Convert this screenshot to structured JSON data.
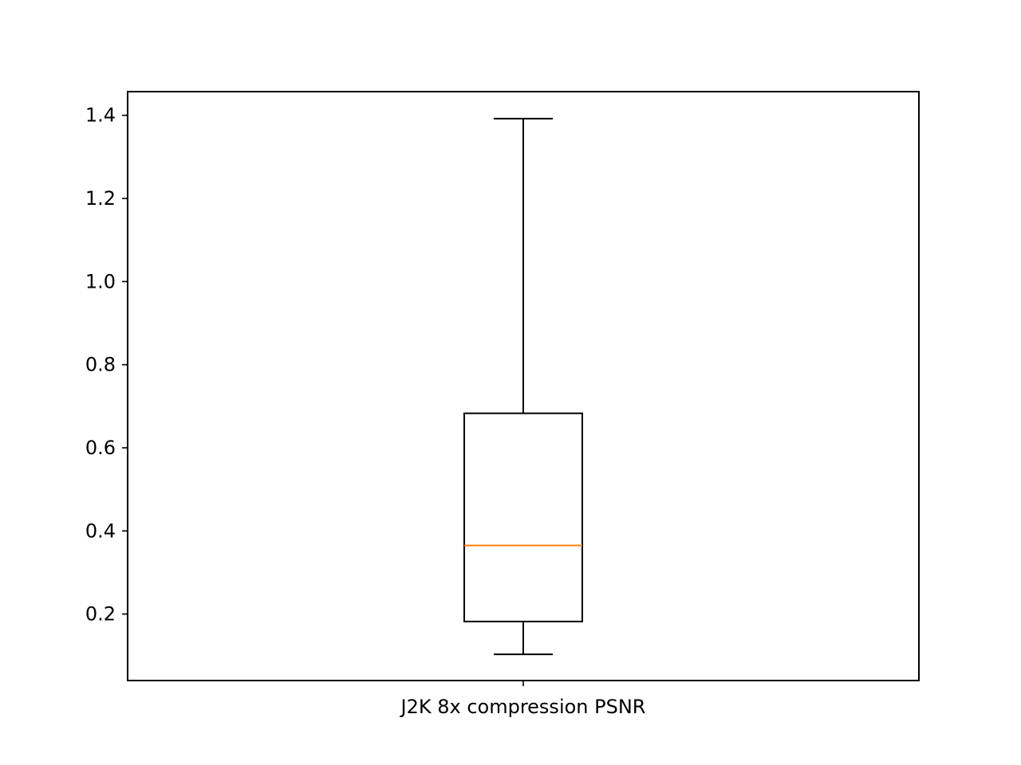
{
  "chart_data": {
    "type": "box",
    "title": "",
    "xlabel": "",
    "ylabel": "",
    "categories": [
      "J2K 8x compression PSNR"
    ],
    "boxes": [
      {
        "category": "J2K 8x compression PSNR",
        "whisker_low": 0.103,
        "q1": 0.182,
        "median": 0.365,
        "q3": 0.683,
        "whisker_high": 1.392
      }
    ],
    "ylim": [
      0.04,
      1.457
    ],
    "yticks": [
      0.2,
      0.4,
      0.6,
      0.8,
      1.0,
      1.2,
      1.4
    ],
    "ytick_labels": [
      "0.2",
      "0.4",
      "0.6",
      "0.8",
      "1.0",
      "1.2",
      "1.4"
    ],
    "grid": false,
    "colors": {
      "box": "#000000",
      "median": "#ff7f0e",
      "axes": "#000000",
      "background": "#ffffff"
    }
  }
}
